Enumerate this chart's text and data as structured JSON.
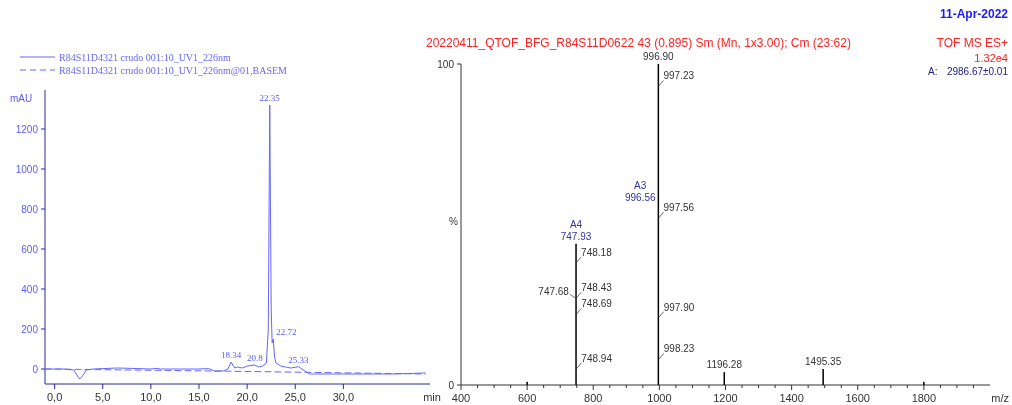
{
  "chart_data": [
    {
      "type": "line",
      "xlabel": "min",
      "ylabel": "mAU",
      "legend": "top left",
      "grid": false,
      "xlim": [
        -1,
        39
      ],
      "ylim": [
        -75,
        1395
      ],
      "xticks": [
        {
          "value": 0,
          "label": "0,0"
        },
        {
          "value": 5,
          "label": "5,0"
        },
        {
          "value": 10,
          "label": "10,0"
        },
        {
          "value": 15,
          "label": "15,0"
        },
        {
          "value": 20,
          "label": "20,0"
        },
        {
          "value": 25,
          "label": "25,0"
        },
        {
          "value": 30,
          "label": "30,0"
        }
      ],
      "yticks": [
        0,
        200,
        400,
        600,
        800,
        1000,
        1200
      ],
      "series": [
        {
          "name": "R84S11D4321 crudo 001:10_UV1_226nm",
          "color": "#6666ff",
          "line_style": "solid",
          "x": [
            -1,
            0,
            1,
            2,
            2.3,
            2.6,
            2.9,
            3.3,
            4,
            5,
            6.5,
            8,
            10,
            10.5,
            11,
            13,
            15,
            16,
            16.6,
            17.5,
            18,
            18.34,
            18.7,
            19,
            19.5,
            20,
            20.8,
            21.2,
            21.6,
            22,
            22.2,
            22.35,
            22.5,
            22.6,
            22.72,
            22.85,
            23,
            23.5,
            24,
            24.5,
            25,
            25.33,
            25.6,
            26,
            26.5,
            27,
            30,
            35,
            38.5
          ],
          "values": [
            0,
            0,
            0,
            -5,
            -30,
            -50,
            -35,
            -5,
            0,
            2,
            5,
            3,
            0,
            3,
            0,
            0,
            0,
            2,
            -10,
            -10,
            0,
            35,
            5,
            10,
            5,
            15,
            20,
            10,
            15,
            30,
            200,
            1320,
            300,
            130,
            150,
            60,
            30,
            15,
            10,
            5,
            8,
            12,
            3,
            -10,
            -25,
            -25,
            -25,
            -25,
            -20
          ]
        },
        {
          "name": "R84S11D4321 crudo 001:10_UV1_226nm@01,BASEM",
          "color": "#6666ff",
          "line_style": "dashed",
          "x": [
            -1,
            16.6,
            38.5
          ],
          "values": [
            0,
            -10,
            -25
          ]
        }
      ],
      "annotations": [
        {
          "text": "18.34",
          "x": 18.34,
          "y": 35
        },
        {
          "text": "20.8",
          "x": 20.8,
          "y": 20
        },
        {
          "text": "22.35",
          "x": 22.35,
          "y": 1320
        },
        {
          "text": "22.72",
          "x": 22.72,
          "y": 150
        },
        {
          "text": "25.33",
          "x": 25.33,
          "y": 12
        }
      ]
    },
    {
      "type": "bar",
      "title": "20220411_QTOF_BFG_R84S11D0622  43 (0.895) Sm (Mn, 1x3.00); Cm (23:62)",
      "xlabel": "m/z",
      "ylabel": "%",
      "legend": false,
      "grid": false,
      "xlim": [
        400,
        2000
      ],
      "ylim": [
        0,
        100
      ],
      "xticks": [
        400,
        {
          "value": 450,
          "label": null
        },
        {
          "value": 500,
          "label": null
        },
        {
          "value": 550,
          "label": null
        },
        600,
        {
          "value": 650,
          "label": null
        },
        {
          "value": 700,
          "label": null
        },
        {
          "value": 750,
          "label": null
        },
        800,
        {
          "value": 850,
          "label": null
        },
        {
          "value": 900,
          "label": null
        },
        {
          "value": 950,
          "label": null
        },
        1000,
        {
          "value": 1050,
          "label": null
        },
        {
          "value": 1100,
          "label": null
        },
        {
          "value": 1150,
          "label": null
        },
        1200,
        {
          "value": 1250,
          "label": null
        },
        {
          "value": 1300,
          "label": null
        },
        {
          "value": 1350,
          "label": null
        },
        1400,
        {
          "value": 1450,
          "label": null
        },
        {
          "value": 1500,
          "label": null
        },
        {
          "value": 1550,
          "label": null
        },
        1600,
        {
          "value": 1650,
          "label": null
        },
        {
          "value": 1700,
          "label": null
        },
        {
          "value": 1750,
          "label": null
        },
        1800,
        {
          "value": 1850,
          "label": null
        },
        {
          "value": 1900,
          "label": null
        },
        {
          "value": 1950,
          "label": null
        }
      ],
      "yticks": [
        0,
        100
      ],
      "color": "#000000",
      "x": [
        600,
        747.93,
        996.9,
        1196.28,
        1495.35,
        1800
      ],
      "values": [
        1,
        44,
        100,
        4,
        5,
        1
      ],
      "annotations": [
        {
          "text": "996.90",
          "x": 996.9,
          "y": 100
        },
        {
          "text": "997.23",
          "x": 997.23,
          "y": 93
        },
        {
          "text": "A3",
          "x": 996.56,
          "y": 55
        },
        {
          "text": "996.56",
          "x": 996.56,
          "y": 55
        },
        {
          "text": "997.56",
          "x": 997.56,
          "y": 52
        },
        {
          "text": "A4",
          "x": 747.93,
          "y": 44
        },
        {
          "text": "747.93",
          "x": 747.93,
          "y": 44
        },
        {
          "text": "748.18",
          "x": 748.18,
          "y": 38
        },
        {
          "text": "747.68",
          "x": 747.68,
          "y": 27
        },
        {
          "text": "748.43",
          "x": 748.43,
          "y": 27
        },
        {
          "text": "748.69",
          "x": 748.69,
          "y": 22
        },
        {
          "text": "748.94",
          "x": 748.94,
          "y": 5
        },
        {
          "text": "997.90",
          "x": 997.9,
          "y": 21
        },
        {
          "text": "998.23",
          "x": 998.23,
          "y": 8
        },
        {
          "text": "1196.28",
          "x": 1196.28,
          "y": 4
        },
        {
          "text": "1495.35",
          "x": 1495.35,
          "y": 5
        },
        "11-Apr-2022",
        "TOF MS ES+",
        "1.32e4",
        "A:",
        "2986.67±0.01"
      ]
    }
  ]
}
